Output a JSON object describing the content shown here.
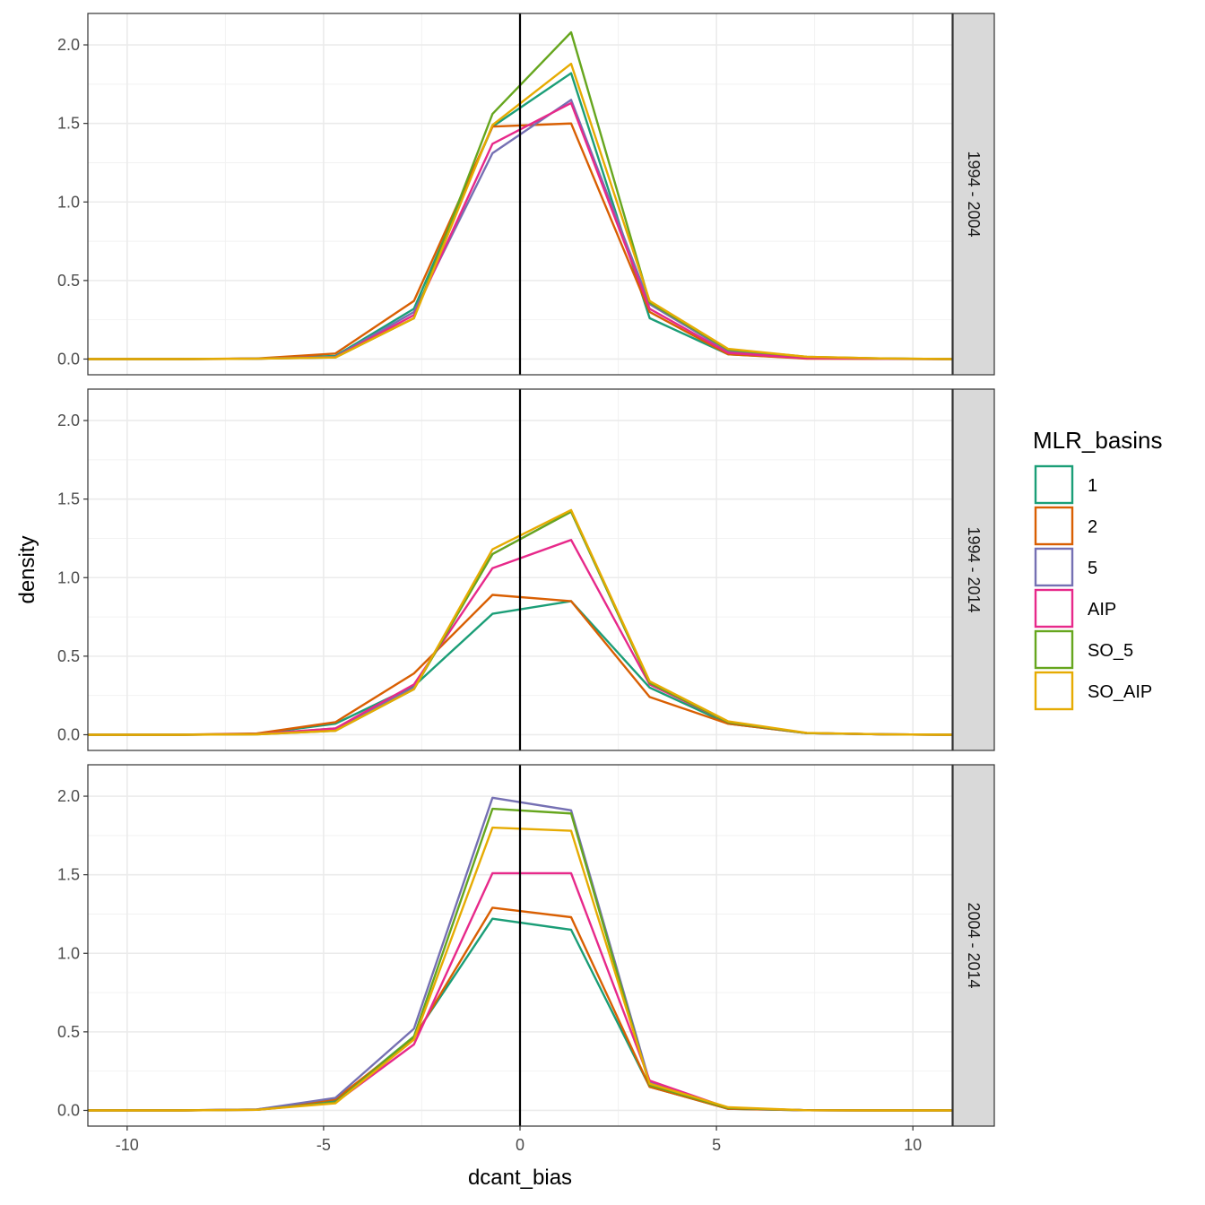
{
  "chart_data": {
    "type": "line",
    "xlabel": "dcant_bias",
    "ylabel": "density",
    "xlim": [
      -11,
      11
    ],
    "ylim": [
      -0.1,
      2.2
    ],
    "x_ticks": [
      -10,
      -5,
      0,
      5,
      10
    ],
    "x_tick_labels": [
      "-10",
      "-5",
      "0",
      "5",
      "10"
    ],
    "y_ticks": [
      0,
      0.5,
      1,
      1.5,
      2
    ],
    "y_tick_labels": [
      "0.0",
      "0.5",
      "1.0",
      "1.5",
      "2.0"
    ],
    "vline_x": 0,
    "grid": true,
    "legend": {
      "title": "MLR_basins",
      "position": "right",
      "entries": [
        {
          "label": "1",
          "color": "#1b9e77"
        },
        {
          "label": "2",
          "color": "#d95f02"
        },
        {
          "label": "5",
          "color": "#7570b3"
        },
        {
          "label": "AIP",
          "color": "#e7298a"
        },
        {
          "label": "SO_5",
          "color": "#66a61e"
        },
        {
          "label": "SO_AIP",
          "color": "#e6ab02"
        }
      ]
    },
    "x": [
      -11,
      -8.7,
      -6.7,
      -4.7,
      -2.7,
      -0.7,
      1.3,
      3.3,
      5.3,
      7.3,
      9.3,
      11
    ],
    "panels": [
      {
        "strip": "1994 - 2004",
        "series": [
          {
            "name": "1",
            "color": "#1b9e77",
            "values": [
              0,
              0,
              0.003,
              0.02,
              0.32,
              1.48,
              1.82,
              0.26,
              0.03,
              0.005,
              0.002,
              0
            ]
          },
          {
            "name": "2",
            "color": "#d95f02",
            "values": [
              0,
              0,
              0.004,
              0.035,
              0.37,
              1.48,
              1.5,
              0.3,
              0.03,
              0.003,
              0.001,
              0
            ]
          },
          {
            "name": "5",
            "color": "#7570b3",
            "values": [
              0,
              0,
              0.003,
              0.015,
              0.3,
              1.31,
              1.65,
              0.35,
              0.05,
              0.01,
              0.003,
              0
            ]
          },
          {
            "name": "AIP",
            "color": "#e7298a",
            "values": [
              0,
              0,
              0.002,
              0.012,
              0.28,
              1.37,
              1.63,
              0.32,
              0.04,
              0.005,
              0.002,
              0
            ]
          },
          {
            "name": "SO_5",
            "color": "#66a61e",
            "values": [
              0,
              0,
              0.002,
              0.01,
              0.26,
              1.56,
              2.08,
              0.36,
              0.06,
              0.015,
              0.004,
              0
            ]
          },
          {
            "name": "SO_AIP",
            "color": "#e6ab02",
            "values": [
              0,
              0,
              0.002,
              0.01,
              0.26,
              1.49,
              1.88,
              0.37,
              0.065,
              0.015,
              0.004,
              0
            ]
          }
        ]
      },
      {
        "strip": "1994 - 2014",
        "series": [
          {
            "name": "1",
            "color": "#1b9e77",
            "values": [
              0,
              0,
              0.005,
              0.07,
              0.31,
              0.77,
              0.85,
              0.3,
              0.07,
              0.01,
              0.002,
              0
            ]
          },
          {
            "name": "2",
            "color": "#d95f02",
            "values": [
              0,
              0,
              0.008,
              0.08,
              0.39,
              0.89,
              0.85,
              0.24,
              0.07,
              0.01,
              0.002,
              0
            ]
          },
          {
            "name": "5",
            "color": "#7570b3",
            "values": [
              0,
              0,
              0.004,
              0.04,
              0.3,
              1.15,
              1.42,
              0.33,
              0.08,
              0.01,
              0.002,
              0
            ]
          },
          {
            "name": "AIP",
            "color": "#e7298a",
            "values": [
              0,
              0,
              0.004,
              0.04,
              0.32,
              1.06,
              1.24,
              0.32,
              0.08,
              0.01,
              0.002,
              0
            ]
          },
          {
            "name": "SO_5",
            "color": "#66a61e",
            "values": [
              0,
              0,
              0.003,
              0.025,
              0.29,
              1.15,
              1.42,
              0.33,
              0.08,
              0.01,
              0.002,
              0
            ]
          },
          {
            "name": "SO_AIP",
            "color": "#e6ab02",
            "values": [
              0,
              0,
              0.003,
              0.025,
              0.29,
              1.18,
              1.43,
              0.34,
              0.085,
              0.012,
              0.002,
              0
            ]
          }
        ]
      },
      {
        "strip": "2004 - 2014",
        "series": [
          {
            "name": "1",
            "color": "#1b9e77",
            "values": [
              0,
              0,
              0.005,
              0.06,
              0.47,
              1.22,
              1.15,
              0.15,
              0.01,
              0.001,
              0,
              0
            ]
          },
          {
            "name": "2",
            "color": "#d95f02",
            "values": [
              0,
              0,
              0.006,
              0.07,
              0.46,
              1.29,
              1.23,
              0.15,
              0.01,
              0.001,
              0,
              0
            ]
          },
          {
            "name": "5",
            "color": "#7570b3",
            "values": [
              0,
              0,
              0.006,
              0.08,
              0.52,
              1.99,
              1.91,
              0.18,
              0.015,
              0.001,
              0,
              0
            ]
          },
          {
            "name": "AIP",
            "color": "#e7298a",
            "values": [
              0,
              0,
              0.004,
              0.05,
              0.42,
              1.51,
              1.51,
              0.19,
              0.015,
              0.001,
              0,
              0
            ]
          },
          {
            "name": "SO_5",
            "color": "#66a61e",
            "values": [
              0,
              0,
              0.004,
              0.05,
              0.47,
              1.92,
              1.89,
              0.16,
              0.015,
              0.001,
              0,
              0
            ]
          },
          {
            "name": "SO_AIP",
            "color": "#e6ab02",
            "values": [
              0,
              0,
              0.004,
              0.045,
              0.45,
              1.8,
              1.78,
              0.17,
              0.02,
              0.001,
              0,
              0
            ]
          }
        ]
      }
    ]
  }
}
